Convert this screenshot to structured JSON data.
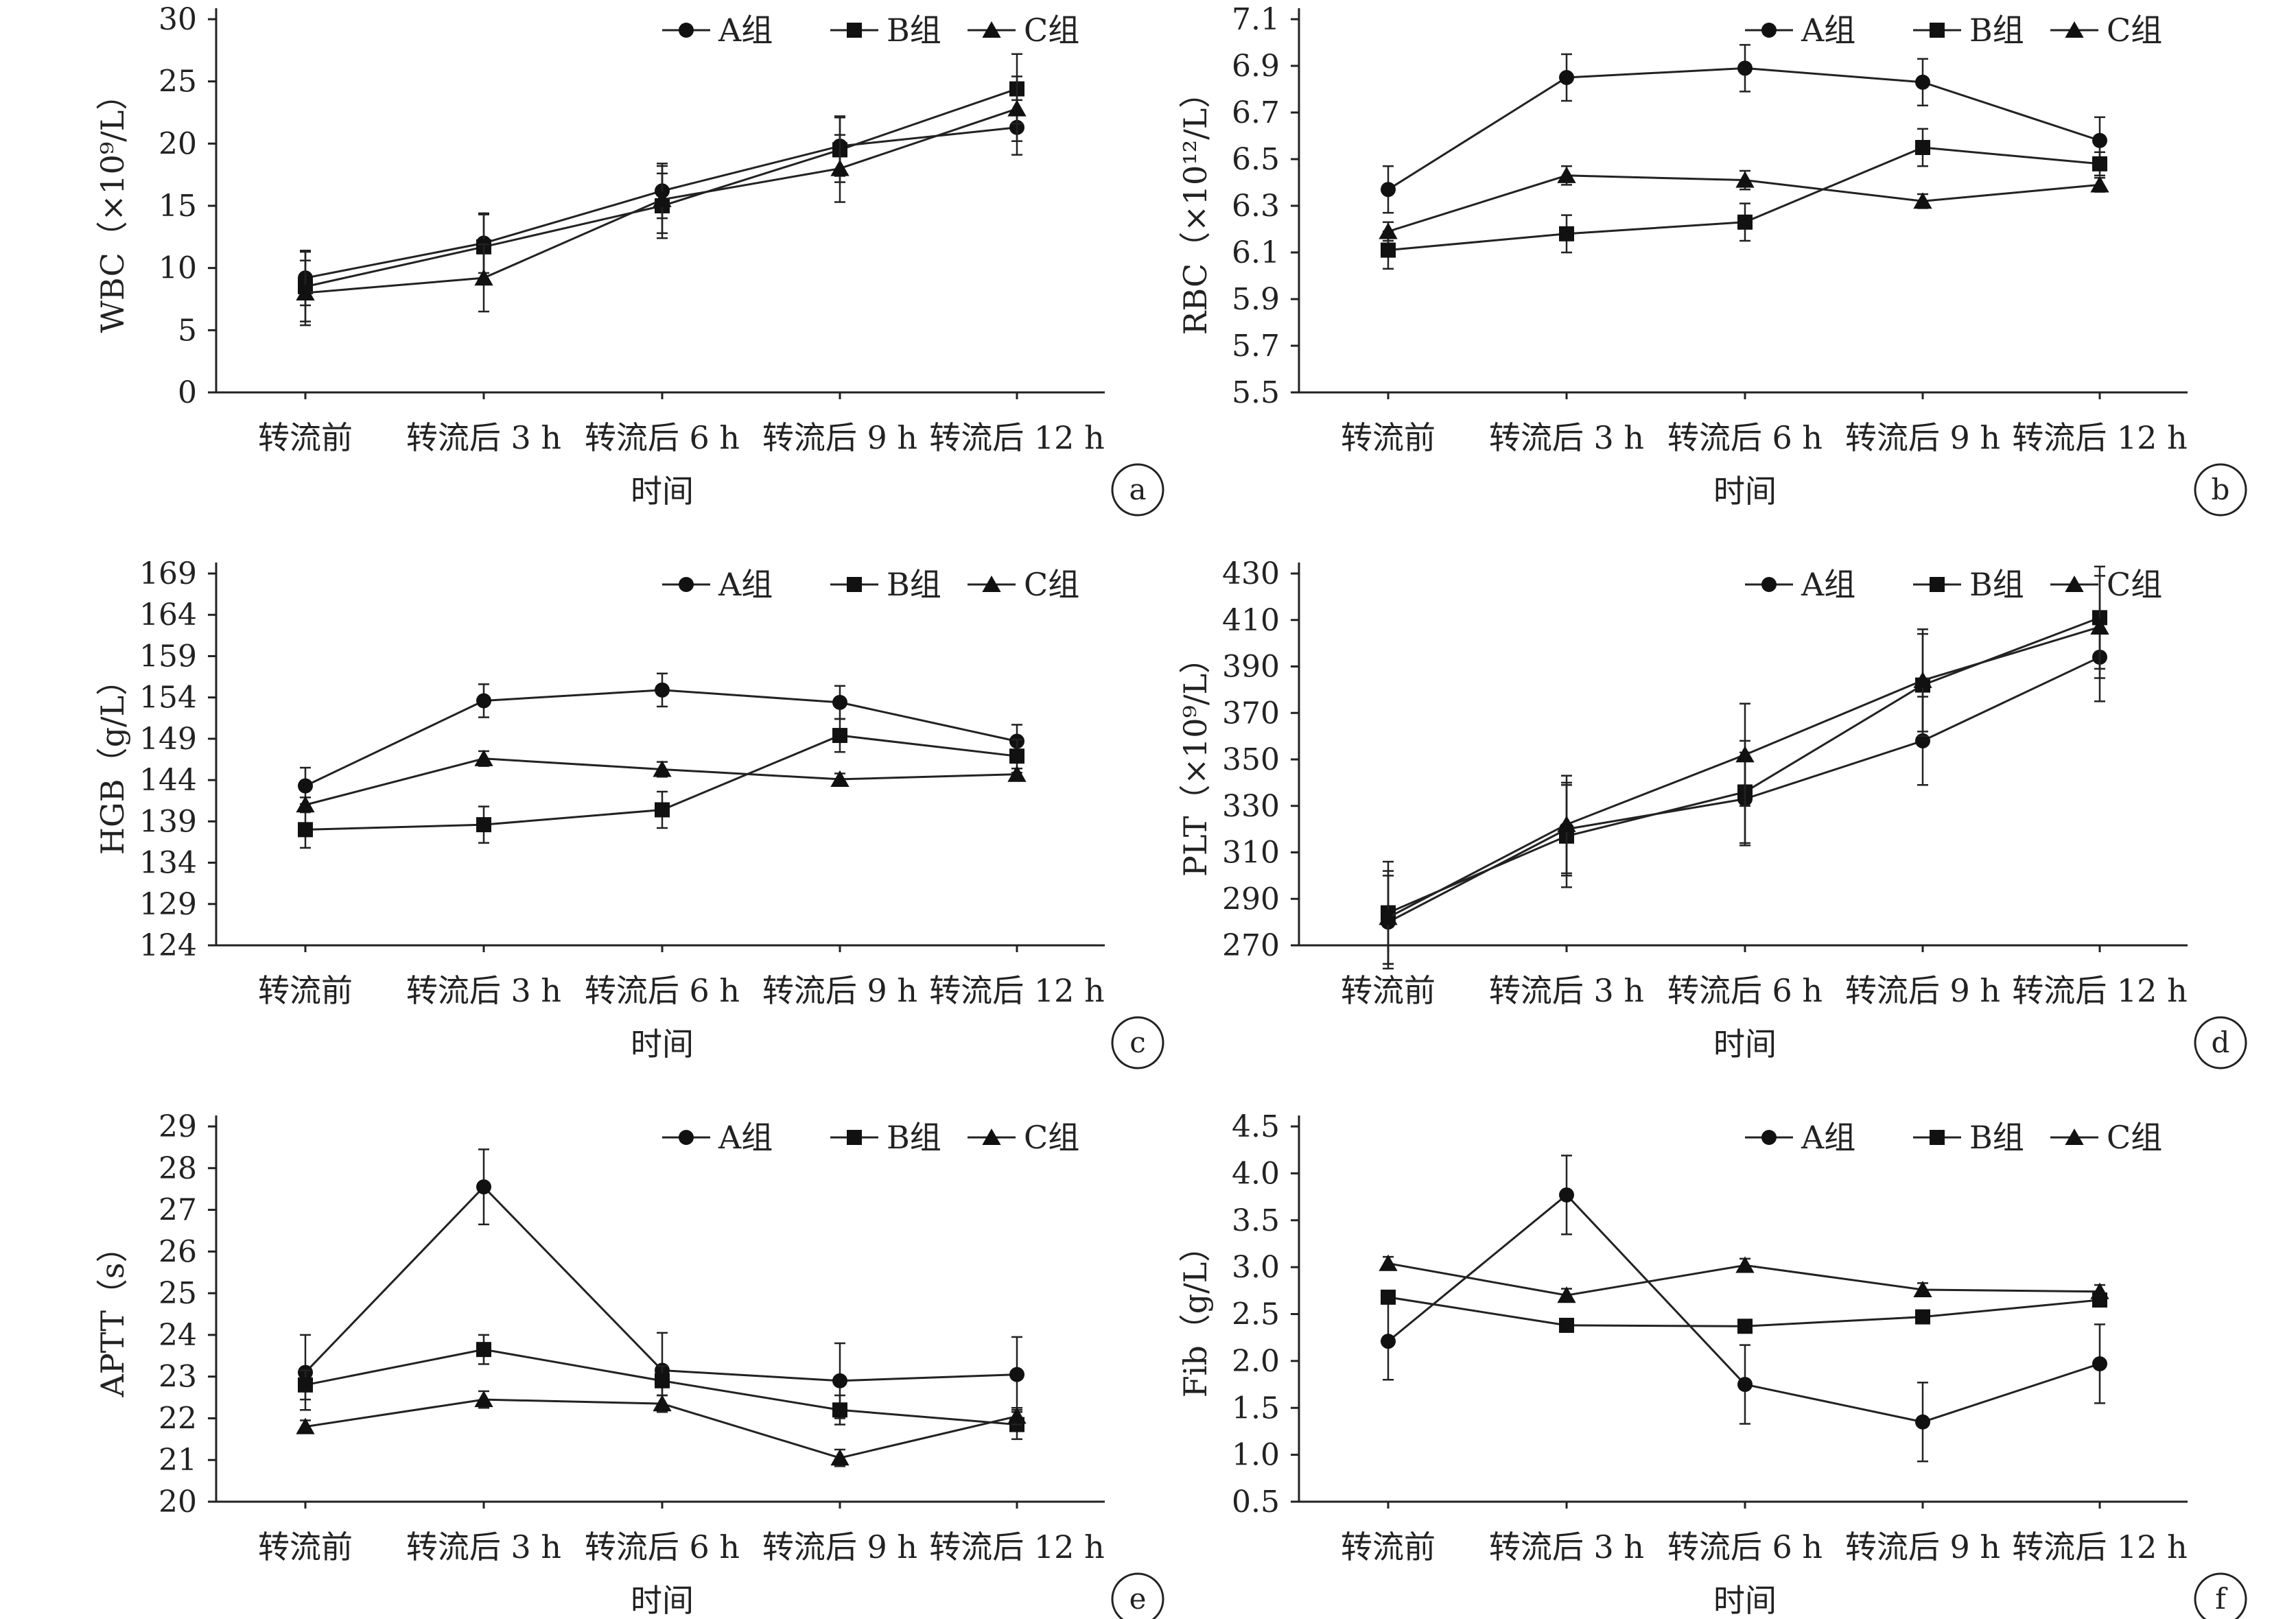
{
  "categories": [
    "转流前",
    "转流后 3 h",
    "转流后 6 h",
    "转流后 9 h",
    "转流后 12 h"
  ],
  "series_names": [
    "A组",
    "B组",
    "C组"
  ],
  "xlabel": "时间",
  "chart_data": [
    {
      "type": "line",
      "panel": "a",
      "ylabel": "WBC（×10⁹/L）",
      "ylim": [
        0,
        30
      ],
      "yticks": [
        "0",
        "5",
        "10",
        "15",
        "20",
        "25",
        "30"
      ],
      "series": [
        {
          "name": "A组",
          "marker": "circle",
          "values": [
            9.2,
            12.0,
            16.2,
            19.8,
            21.3
          ],
          "errors": [
            2.2,
            2.4,
            2.2,
            2.4,
            2.2
          ]
        },
        {
          "name": "B组",
          "marker": "square",
          "values": [
            8.5,
            11.7,
            15.0,
            19.5,
            24.4
          ],
          "errors": [
            2.8,
            2.6,
            2.6,
            2.6,
            2.8
          ]
        },
        {
          "name": "C组",
          "marker": "triangle",
          "values": [
            8.0,
            9.2,
            15.5,
            18.0,
            22.8
          ],
          "errors": [
            2.6,
            2.7,
            2.7,
            2.7,
            2.6
          ]
        }
      ]
    },
    {
      "type": "line",
      "panel": "b",
      "ylabel": "RBC（×10¹²/L）",
      "ylim": [
        5.5,
        7.1
      ],
      "yticks": [
        "5.5",
        "5.7",
        "5.9",
        "6.1",
        "6.3",
        "6.5",
        "6.7",
        "6.9",
        "7.1"
      ],
      "series": [
        {
          "name": "A组",
          "marker": "circle",
          "values": [
            6.37,
            6.85,
            6.89,
            6.83,
            6.58
          ],
          "errors": [
            0.1,
            0.1,
            0.1,
            0.1,
            0.1
          ]
        },
        {
          "name": "B组",
          "marker": "square",
          "values": [
            6.11,
            6.18,
            6.23,
            6.55,
            6.48
          ],
          "errors": [
            0.08,
            0.08,
            0.08,
            0.08,
            0.05
          ]
        },
        {
          "name": "C组",
          "marker": "triangle",
          "values": [
            6.19,
            6.43,
            6.41,
            6.32,
            6.39
          ],
          "errors": [
            0.04,
            0.04,
            0.04,
            0.03,
            0.03
          ]
        }
      ]
    },
    {
      "type": "line",
      "panel": "c",
      "ylabel": "HGB（g/L）",
      "ylim": [
        124,
        169
      ],
      "yticks": [
        "124",
        "129",
        "134",
        "139",
        "144",
        "149",
        "154",
        "159",
        "164",
        "169"
      ],
      "series": [
        {
          "name": "A组",
          "marker": "circle",
          "values": [
            143.3,
            153.6,
            154.9,
            153.4,
            148.7
          ],
          "errors": [
            2.2,
            2.0,
            2.0,
            2.0,
            2.0
          ]
        },
        {
          "name": "B组",
          "marker": "square",
          "values": [
            138.0,
            138.6,
            140.4,
            149.4,
            146.9
          ],
          "errors": [
            2.2,
            2.2,
            2.2,
            2.0,
            2.0
          ]
        },
        {
          "name": "C组",
          "marker": "triangle",
          "values": [
            141.0,
            146.6,
            145.3,
            144.1,
            144.7
          ],
          "errors": [
            0.9,
            0.9,
            0.9,
            0.7,
            0.7
          ]
        }
      ]
    },
    {
      "type": "line",
      "panel": "d",
      "ylabel": "PLT（×10⁹/L）",
      "ylim": [
        270,
        430
      ],
      "yticks": [
        "270",
        "290",
        "310",
        "330",
        "350",
        "370",
        "390",
        "410",
        "430"
      ],
      "series": [
        {
          "name": "A组",
          "marker": "circle",
          "values": [
            280,
            320,
            333,
            358,
            394
          ],
          "errors": [
            20,
            20,
            20,
            19,
            19
          ]
        },
        {
          "name": "B组",
          "marker": "square",
          "values": [
            284,
            317,
            336,
            382,
            411
          ],
          "errors": [
            22,
            22,
            22,
            22,
            22
          ]
        },
        {
          "name": "C组",
          "marker": "triangle",
          "values": [
            282,
            322,
            352,
            384,
            407
          ],
          "errors": [
            20,
            21,
            22,
            22,
            22
          ]
        }
      ]
    },
    {
      "type": "line",
      "panel": "e",
      "ylabel": "APTT（s）",
      "ylim": [
        20,
        29
      ],
      "yticks": [
        "20",
        "21",
        "22",
        "23",
        "24",
        "25",
        "26",
        "27",
        "28",
        "29"
      ],
      "series": [
        {
          "name": "A组",
          "marker": "circle",
          "values": [
            23.1,
            27.55,
            23.15,
            22.9,
            23.05
          ],
          "errors": [
            0.9,
            0.9,
            0.9,
            0.9,
            0.9
          ]
        },
        {
          "name": "B组",
          "marker": "square",
          "values": [
            22.8,
            23.65,
            22.9,
            22.2,
            21.85
          ],
          "errors": [
            0.35,
            0.35,
            0.35,
            0.35,
            0.35
          ]
        },
        {
          "name": "C组",
          "marker": "triangle",
          "values": [
            21.8,
            22.45,
            22.35,
            21.05,
            22.05
          ],
          "errors": [
            0.15,
            0.2,
            0.2,
            0.2,
            0.2
          ]
        }
      ]
    },
    {
      "type": "line",
      "panel": "f",
      "ylabel": "Fib（g/L）",
      "ylim": [
        0.5,
        4.5
      ],
      "yticks": [
        "0.5",
        "1.0",
        "1.5",
        "2.0",
        "2.5",
        "3.0",
        "3.5",
        "4.0",
        "4.5"
      ],
      "series": [
        {
          "name": "A组",
          "marker": "circle",
          "values": [
            2.21,
            3.77,
            1.75,
            1.35,
            1.97
          ],
          "errors": [
            0.41,
            0.42,
            0.42,
            0.42,
            0.42
          ]
        },
        {
          "name": "B组",
          "marker": "square",
          "values": [
            2.68,
            2.38,
            2.37,
            2.47,
            2.65
          ],
          "errors": [
            0.05,
            0.05,
            0.05,
            0.05,
            0.05
          ]
        },
        {
          "name": "C组",
          "marker": "triangle",
          "values": [
            3.04,
            2.7,
            3.02,
            2.76,
            2.74
          ],
          "errors": [
            0.07,
            0.07,
            0.07,
            0.07,
            0.07
          ]
        }
      ]
    }
  ]
}
